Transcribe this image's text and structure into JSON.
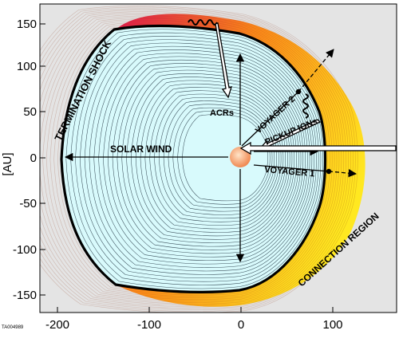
{
  "chart_data": {
    "type": "diagram",
    "title": "",
    "ylabel": "[AU]",
    "xlabel": "",
    "xlim": [
      -220,
      165
    ],
    "ylim": [
      -170,
      165
    ],
    "x_ticks": [
      "-200",
      "-100",
      "0",
      "100"
    ],
    "y_ticks": [
      "150",
      "100",
      "50",
      "0",
      "-50",
      "-100",
      "-150"
    ],
    "grid": false
  },
  "labels": {
    "termination_shock": "TERMINATION SHOCK",
    "solar_wind": "SOLAR WIND",
    "acrs": "ACRs",
    "voyager2": "VOYAGER 2",
    "voyager1": "VOYAGER 1",
    "pickup_ions": "PICKUP IONs",
    "connection_region": "CONNECTION REGION",
    "figure_id": "TA004989"
  },
  "colors": {
    "background": "#e4e4e4",
    "inner_fill": "#d8fafc",
    "contour": "#3a4f5a",
    "sun_core": "#ffe4c8",
    "sun_edge": "#f08850",
    "heliosheath_inner": "#e01850",
    "heliosheath_mid": "#ff8a1a",
    "heliosheath_outer": "#ffe820"
  }
}
